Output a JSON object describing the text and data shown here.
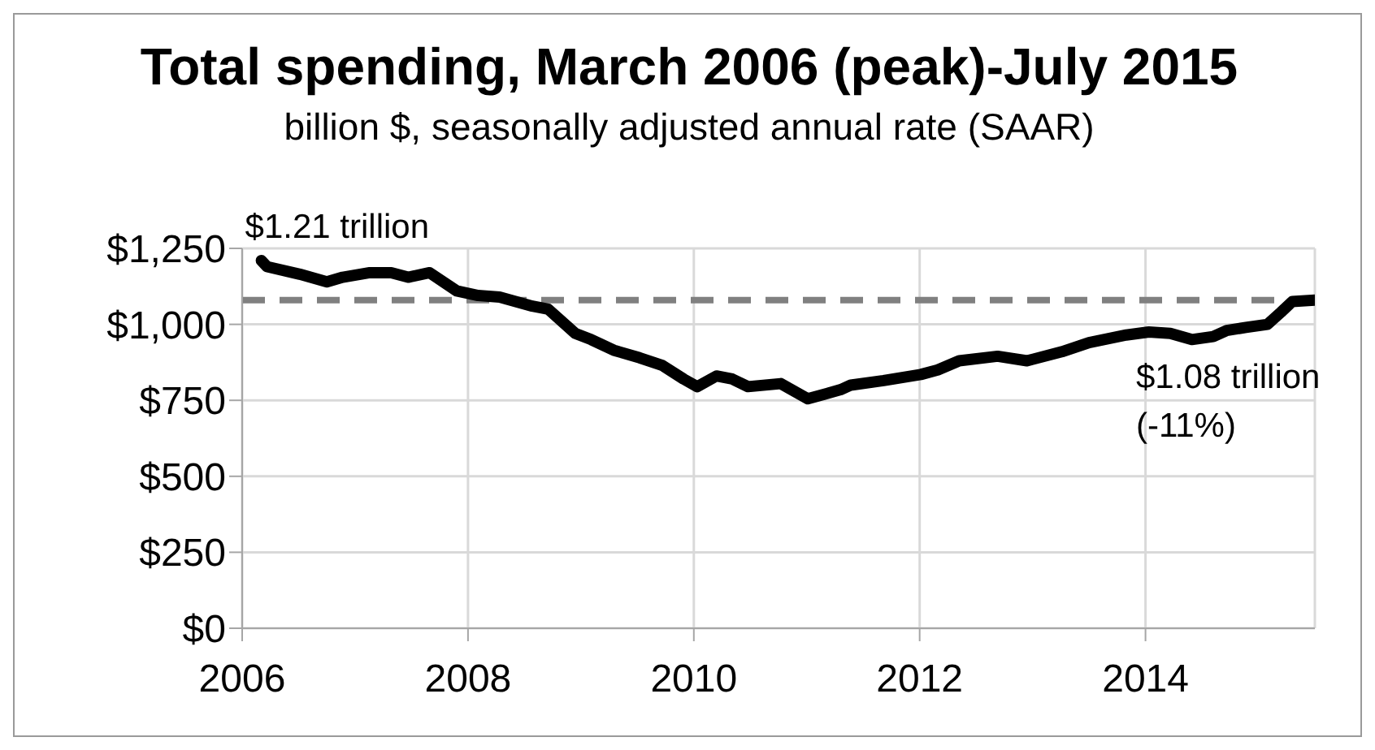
{
  "chart_data": {
    "type": "line",
    "title": "Total spending, March 2006 (peak)-July 2015",
    "subtitle": "billion $, seasonally adjusted annual rate (SAAR)",
    "x": [
      2006.17,
      2006.22,
      2006.51,
      2006.75,
      2006.89,
      2007.13,
      2007.32,
      2007.47,
      2007.66,
      2007.9,
      2008.09,
      2008.28,
      2008.57,
      2008.71,
      2008.95,
      2009.09,
      2009.29,
      2009.52,
      2009.72,
      2009.91,
      2010.03,
      2010.2,
      2010.34,
      2010.48,
      2010.77,
      2011.01,
      2011.3,
      2011.39,
      2011.68,
      2012.01,
      2012.16,
      2012.35,
      2012.69,
      2012.95,
      2013.26,
      2013.5,
      2013.83,
      2014.03,
      2014.22,
      2014.41,
      2014.6,
      2014.72,
      2014.89,
      2015.08,
      2015.2,
      2015.3,
      2015.5
    ],
    "series": [
      {
        "color": "#000000",
        "values": [
          1210,
          1190,
          1165,
          1140,
          1155,
          1170,
          1170,
          1155,
          1170,
          1110,
          1095,
          1090,
          1060,
          1050,
          970,
          950,
          915,
          890,
          865,
          820,
          795,
          830,
          820,
          795,
          805,
          755,
          785,
          800,
          815,
          835,
          850,
          880,
          895,
          880,
          910,
          940,
          965,
          975,
          970,
          950,
          960,
          980,
          990,
          1000,
          1040,
          1075,
          1080
        ]
      }
    ],
    "xlim": [
      2006,
      2015.5
    ],
    "xticks": [
      2006,
      2008,
      2010,
      2012,
      2014
    ],
    "ylim": [
      0,
      1250
    ],
    "yticks": [
      {
        "value": 0,
        "label": "$0"
      },
      {
        "value": 250,
        "label": "$250"
      },
      {
        "value": 500,
        "label": "$500"
      },
      {
        "value": 750,
        "label": "$750"
      },
      {
        "value": 1000,
        "label": "$1,000"
      },
      {
        "value": 1250,
        "label": "$1,250"
      }
    ],
    "grid": true,
    "marker": "none",
    "line_style": "solid",
    "ref_lines": [
      {
        "axis": "y",
        "value": 1080,
        "color": "#808080",
        "line_style": "dashed"
      }
    ],
    "annotations": [
      {
        "text": "$1.21 trillion",
        "x": 2006.17,
        "y": 1210
      },
      {
        "text": "$1.08 trillion\n(-11%)",
        "x": 2015.5,
        "y": 1080
      }
    ]
  }
}
